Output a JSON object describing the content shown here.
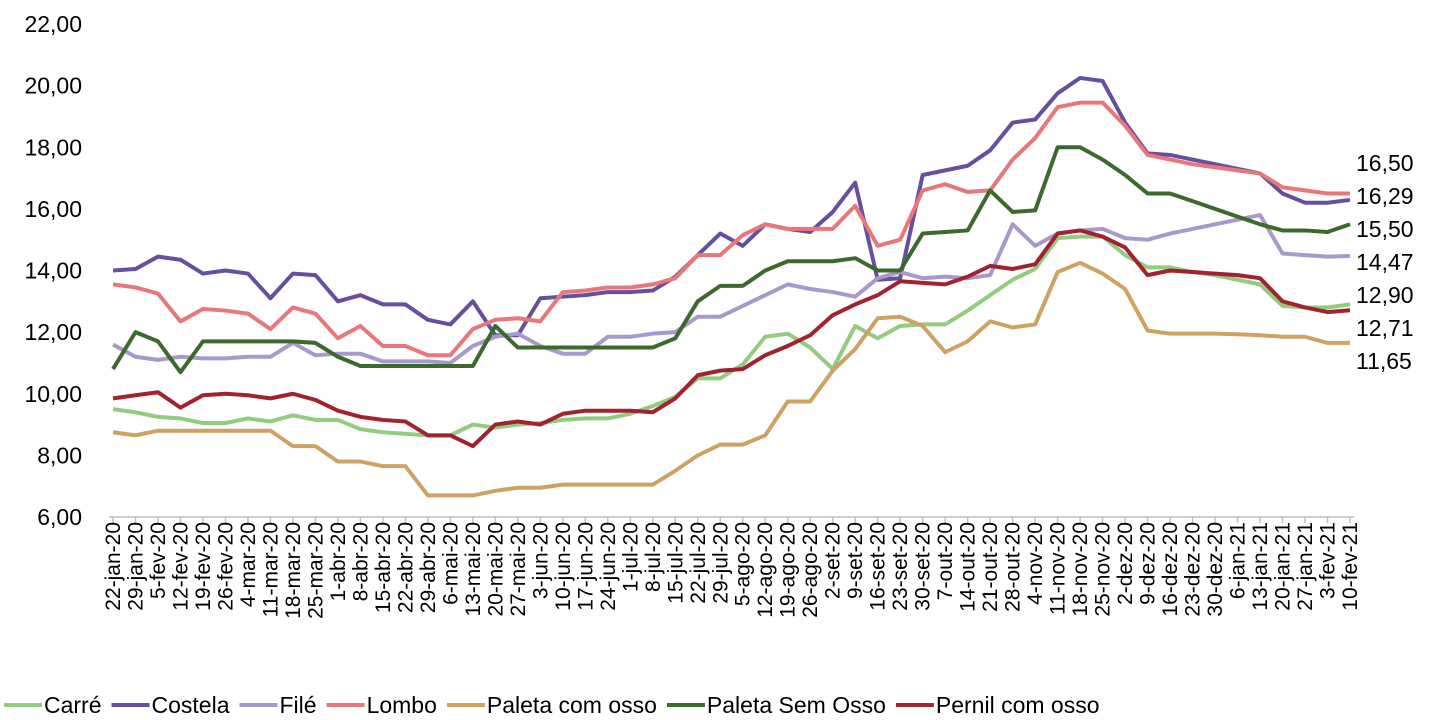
{
  "chart_data": {
    "type": "line",
    "categories": [
      "22-jan-20",
      "29-jan-20",
      "5-fev-20",
      "12-fev-20",
      "19-fev-20",
      "26-fev-20",
      "4-mar-20",
      "11-mar-20",
      "18-mar-20",
      "25-mar-20",
      "1-abr-20",
      "8-abr-20",
      "15-abr-20",
      "22-abr-20",
      "29-abr-20",
      "6-mai-20",
      "13-mai-20",
      "20-mai-20",
      "27-mai-20",
      "3-jun-20",
      "10-jun-20",
      "17-jun-20",
      "24-jun-20",
      "1-jul-20",
      "8-jul-20",
      "15-jul-20",
      "22-jul-20",
      "29-jul-20",
      "5-ago-20",
      "12-ago-20",
      "19-ago-20",
      "26-ago-20",
      "2-set-20",
      "9-set-20",
      "16-set-20",
      "23-set-20",
      "30-set-20",
      "7-out-20",
      "14-out-20",
      "21-out-20",
      "28-out-20",
      "4-nov-20",
      "11-nov-20",
      "18-nov-20",
      "25-nov-20",
      "2-dez-20",
      "9-dez-20",
      "16-dez-20",
      "23-dez-20",
      "30-dez-20",
      "6-jan-21",
      "13-jan-21",
      "20-jan-21",
      "27-jan-21",
      "3-fev-21",
      "10-fev-21"
    ],
    "series": [
      {
        "name": "Carré",
        "color": "#92cc7e",
        "values": [
          9.5,
          9.4,
          9.25,
          9.2,
          9.05,
          9.05,
          9.2,
          9.1,
          9.3,
          9.15,
          9.15,
          8.85,
          8.75,
          8.7,
          8.65,
          8.65,
          9.0,
          8.9,
          9.0,
          9.05,
          9.15,
          9.2,
          9.2,
          9.35,
          9.6,
          9.9,
          10.5,
          10.5,
          10.95,
          11.85,
          11.95,
          11.5,
          10.8,
          12.2,
          11.8,
          12.2,
          12.25,
          12.25,
          12.7,
          13.2,
          13.7,
          14.05,
          15.05,
          15.1,
          15.1,
          14.5,
          14.1,
          14.1,
          13.95,
          13.85,
          13.7,
          13.55,
          12.85,
          12.8,
          12.8,
          12.9
        ],
        "value_labels": [
          null,
          null,
          null,
          null,
          null,
          null,
          null,
          null,
          null,
          null,
          null,
          null,
          null,
          null,
          null,
          null,
          null,
          null,
          null,
          null,
          null,
          null,
          null,
          null,
          null,
          null,
          null,
          null,
          null,
          null,
          null,
          null,
          null,
          null,
          null,
          null,
          null,
          null,
          null,
          null,
          null,
          null,
          null,
          null,
          null,
          null,
          null,
          null,
          null,
          null,
          null,
          null,
          null,
          null,
          null,
          "12,90"
        ]
      },
      {
        "name": "Costela",
        "color": "#674e9e",
        "values": [
          14.0,
          14.05,
          14.45,
          14.35,
          13.9,
          14.0,
          13.9,
          13.1,
          13.9,
          13.85,
          13.0,
          13.2,
          12.9,
          12.9,
          12.4,
          12.25,
          13.0,
          11.9,
          11.9,
          13.1,
          13.15,
          13.2,
          13.3,
          13.3,
          13.35,
          13.8,
          14.5,
          15.2,
          14.8,
          15.5,
          15.35,
          15.25,
          15.9,
          16.85,
          13.7,
          13.75,
          17.1,
          17.25,
          17.4,
          17.9,
          18.8,
          18.9,
          19.75,
          20.25,
          20.15,
          18.8,
          17.8,
          17.75,
          17.6,
          17.45,
          17.3,
          17.15,
          16.5,
          16.2,
          16.2,
          16.29
        ],
        "value_labels": [
          null,
          null,
          null,
          null,
          null,
          null,
          null,
          null,
          null,
          null,
          null,
          null,
          null,
          null,
          null,
          null,
          null,
          null,
          null,
          null,
          null,
          null,
          null,
          null,
          null,
          null,
          null,
          null,
          null,
          null,
          null,
          null,
          null,
          null,
          null,
          null,
          null,
          null,
          null,
          null,
          null,
          null,
          null,
          null,
          null,
          null,
          null,
          null,
          null,
          null,
          null,
          null,
          null,
          null,
          null,
          "16,29"
        ]
      },
      {
        "name": "Filé",
        "color": "#a899cc",
        "values": [
          11.6,
          11.2,
          11.1,
          11.2,
          11.15,
          11.15,
          11.2,
          11.2,
          11.65,
          11.25,
          11.3,
          11.3,
          11.05,
          11.05,
          11.05,
          11.0,
          11.55,
          11.85,
          11.95,
          11.55,
          11.3,
          11.3,
          11.85,
          11.85,
          11.95,
          12.0,
          12.5,
          12.5,
          12.85,
          13.2,
          13.55,
          13.4,
          13.3,
          13.15,
          13.75,
          13.95,
          13.75,
          13.8,
          13.75,
          13.85,
          15.5,
          14.8,
          15.2,
          15.3,
          15.35,
          15.05,
          15.0,
          15.2,
          15.35,
          15.5,
          15.65,
          15.8,
          14.55,
          14.5,
          14.45,
          14.47
        ],
        "value_labels": [
          null,
          null,
          null,
          null,
          null,
          null,
          null,
          null,
          null,
          null,
          null,
          null,
          null,
          null,
          null,
          null,
          null,
          null,
          null,
          null,
          null,
          null,
          null,
          null,
          null,
          null,
          null,
          null,
          null,
          null,
          null,
          null,
          null,
          null,
          null,
          null,
          null,
          null,
          null,
          null,
          null,
          null,
          null,
          null,
          null,
          null,
          null,
          null,
          null,
          null,
          null,
          null,
          null,
          null,
          null,
          "14,47"
        ]
      },
      {
        "name": "Lombo",
        "color": "#e8777b",
        "values": [
          13.55,
          13.45,
          13.25,
          12.35,
          12.75,
          12.7,
          12.6,
          12.1,
          12.8,
          12.6,
          11.8,
          12.2,
          11.55,
          11.55,
          11.25,
          11.25,
          12.1,
          12.4,
          12.45,
          12.35,
          13.3,
          13.35,
          13.45,
          13.45,
          13.55,
          13.75,
          14.5,
          14.5,
          15.15,
          15.5,
          15.35,
          15.35,
          15.35,
          16.1,
          14.8,
          15.0,
          16.6,
          16.8,
          16.55,
          16.6,
          17.6,
          18.3,
          19.3,
          19.45,
          19.45,
          18.7,
          17.75,
          17.6,
          17.45,
          17.35,
          17.25,
          17.15,
          16.7,
          16.6,
          16.5,
          16.5
        ],
        "value_labels": [
          null,
          null,
          null,
          null,
          null,
          null,
          null,
          null,
          null,
          null,
          null,
          null,
          null,
          null,
          null,
          null,
          null,
          null,
          null,
          null,
          null,
          null,
          null,
          null,
          null,
          null,
          null,
          null,
          null,
          null,
          null,
          null,
          null,
          null,
          null,
          null,
          null,
          null,
          null,
          null,
          null,
          null,
          null,
          null,
          null,
          null,
          null,
          null,
          null,
          null,
          null,
          null,
          null,
          null,
          null,
          "16,50"
        ]
      },
      {
        "name": "Paleta com osso",
        "color": "#cfa263",
        "values": [
          8.75,
          8.65,
          8.8,
          8.8,
          8.8,
          8.8,
          8.8,
          8.8,
          8.3,
          8.3,
          7.8,
          7.8,
          7.65,
          7.65,
          6.7,
          6.7,
          6.7,
          6.85,
          6.95,
          6.95,
          7.05,
          7.05,
          7.05,
          7.05,
          7.05,
          7.5,
          8.0,
          8.35,
          8.35,
          8.65,
          9.75,
          9.75,
          10.75,
          11.45,
          12.45,
          12.5,
          12.2,
          11.35,
          11.7,
          12.35,
          12.15,
          12.25,
          13.95,
          14.25,
          13.9,
          13.4,
          12.05,
          11.95,
          11.95,
          11.95,
          11.93,
          11.9,
          11.85,
          11.85,
          11.65,
          11.65
        ],
        "value_labels": [
          null,
          null,
          null,
          null,
          null,
          null,
          null,
          null,
          null,
          null,
          null,
          null,
          null,
          null,
          null,
          null,
          null,
          null,
          null,
          null,
          null,
          null,
          null,
          null,
          null,
          null,
          null,
          null,
          null,
          null,
          null,
          null,
          null,
          null,
          null,
          null,
          null,
          null,
          null,
          null,
          null,
          null,
          null,
          null,
          null,
          null,
          null,
          null,
          null,
          null,
          null,
          null,
          null,
          null,
          null,
          "11,65"
        ]
      },
      {
        "name": "Paleta Sem Osso",
        "color": "#3b6a2c",
        "values": [
          10.8,
          12.0,
          11.7,
          10.7,
          11.7,
          11.7,
          11.7,
          11.7,
          11.7,
          11.65,
          11.2,
          10.9,
          10.9,
          10.9,
          10.9,
          10.9,
          10.9,
          12.2,
          11.5,
          11.5,
          11.5,
          11.5,
          11.5,
          11.5,
          11.5,
          11.8,
          13.0,
          13.5,
          13.5,
          14.0,
          14.3,
          14.3,
          14.3,
          14.4,
          14.0,
          14.0,
          15.2,
          15.25,
          15.3,
          16.6,
          15.9,
          15.95,
          18.0,
          18.0,
          17.6,
          17.1,
          16.5,
          16.5,
          16.25,
          16.0,
          15.75,
          15.5,
          15.3,
          15.3,
          15.25,
          15.5
        ],
        "value_labels": [
          null,
          null,
          null,
          null,
          null,
          null,
          null,
          null,
          null,
          null,
          null,
          null,
          null,
          null,
          null,
          null,
          null,
          null,
          null,
          null,
          null,
          null,
          null,
          null,
          null,
          null,
          null,
          null,
          null,
          null,
          null,
          null,
          null,
          null,
          null,
          null,
          null,
          null,
          null,
          null,
          null,
          null,
          null,
          null,
          null,
          null,
          null,
          null,
          null,
          null,
          null,
          null,
          null,
          null,
          null,
          "15,50"
        ]
      },
      {
        "name": "Pernil com osso",
        "color": "#a2232f",
        "values": [
          9.85,
          9.95,
          10.05,
          9.55,
          9.95,
          10.0,
          9.95,
          9.85,
          10.0,
          9.8,
          9.45,
          9.25,
          9.15,
          9.1,
          8.65,
          8.65,
          8.3,
          9.0,
          9.1,
          9.0,
          9.35,
          9.45,
          9.45,
          9.45,
          9.4,
          9.85,
          10.6,
          10.75,
          10.8,
          11.25,
          11.55,
          11.9,
          12.55,
          12.9,
          13.2,
          13.65,
          13.6,
          13.55,
          13.8,
          14.15,
          14.05,
          14.2,
          15.2,
          15.3,
          15.1,
          14.75,
          13.85,
          14.0,
          13.95,
          13.9,
          13.85,
          13.75,
          13.0,
          12.8,
          12.65,
          12.71
        ],
        "value_labels": [
          null,
          null,
          null,
          null,
          null,
          null,
          null,
          null,
          null,
          null,
          null,
          null,
          null,
          null,
          null,
          null,
          null,
          null,
          null,
          null,
          null,
          null,
          null,
          null,
          null,
          null,
          null,
          null,
          null,
          null,
          null,
          null,
          null,
          null,
          null,
          null,
          null,
          null,
          null,
          null,
          null,
          null,
          null,
          null,
          null,
          null,
          null,
          null,
          null,
          null,
          null,
          null,
          null,
          null,
          null,
          "12,71"
        ]
      }
    ],
    "ylim": [
      6,
      22
    ],
    "yticks": [
      {
        "value": 6,
        "label": "6,00"
      },
      {
        "value": 8,
        "label": "8,00"
      },
      {
        "value": 10,
        "label": "10,00"
      },
      {
        "value": 12,
        "label": "12,00"
      },
      {
        "value": 14,
        "label": "14,00"
      },
      {
        "value": 16,
        "label": "16,00"
      },
      {
        "value": 18,
        "label": "18,00"
      },
      {
        "value": 20,
        "label": "20,00"
      },
      {
        "value": 22,
        "label": "22,00"
      }
    ],
    "grid": false,
    "legend": "bottom"
  }
}
